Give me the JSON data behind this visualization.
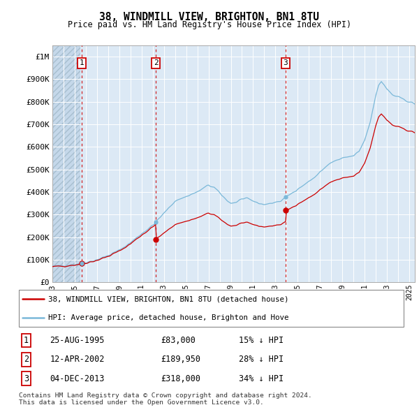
{
  "title": "38, WINDMILL VIEW, BRIGHTON, BN1 8TU",
  "subtitle": "Price paid vs. HM Land Registry's House Price Index (HPI)",
  "ylim": [
    0,
    1050000
  ],
  "yticks": [
    0,
    100000,
    200000,
    300000,
    400000,
    500000,
    600000,
    700000,
    800000,
    900000,
    1000000
  ],
  "ytick_labels": [
    "£0",
    "£100K",
    "£200K",
    "£300K",
    "£400K",
    "£500K",
    "£600K",
    "£700K",
    "£800K",
    "£900K",
    "£1M"
  ],
  "xlim_start": 1993.0,
  "xlim_end": 2025.5,
  "hpi_color": "#7ab8d9",
  "price_color": "#cc0000",
  "dashed_line_color": "#cc0000",
  "background_color": "#dce9f5",
  "grid_color": "#ffffff",
  "sale_dates": [
    1995.65,
    2002.28,
    2013.92
  ],
  "sale_prices": [
    83000,
    189950,
    318000
  ],
  "sale_labels": [
    "1",
    "2",
    "3"
  ],
  "legend_line1": "38, WINDMILL VIEW, BRIGHTON, BN1 8TU (detached house)",
  "legend_line2": "HPI: Average price, detached house, Brighton and Hove",
  "table_data": [
    [
      "1",
      "25-AUG-1995",
      "£83,000",
      "15% ↓ HPI"
    ],
    [
      "2",
      "12-APR-2002",
      "£189,950",
      "28% ↓ HPI"
    ],
    [
      "3",
      "04-DEC-2013",
      "£318,000",
      "34% ↓ HPI"
    ]
  ],
  "footer": "Contains HM Land Registry data © Crown copyright and database right 2024.\nThis data is licensed under the Open Government Licence v3.0.",
  "hatch_end": 1995.5
}
